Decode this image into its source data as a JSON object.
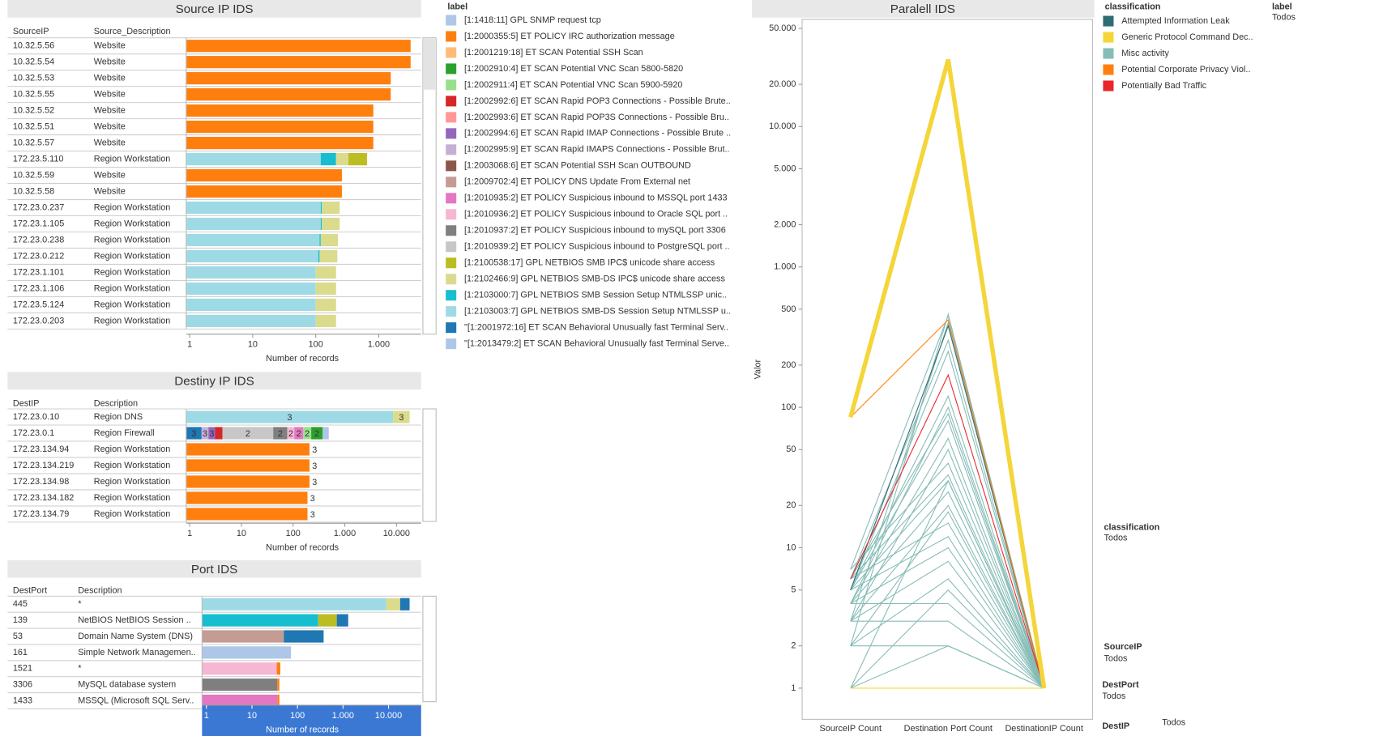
{
  "source_ip": {
    "title": "Source IP IDS",
    "columns": [
      "SourceIP",
      "Source_Description"
    ],
    "axis": {
      "label": "Number of records",
      "lim": [
        0.88,
        4700
      ],
      "ticks": [
        1,
        10,
        100,
        {
          "value": 1000,
          "label": "1.000"
        }
      ]
    },
    "rows": [
      {
        "key": "10.32.5.56",
        "description": "Website",
        "segments": [
          {
            "color": "#ff7f0e",
            "value": 3200
          }
        ]
      },
      {
        "key": "10.32.5.54",
        "description": "Website",
        "segments": [
          {
            "color": "#ff7f0e",
            "value": 3200
          }
        ]
      },
      {
        "key": "10.32.5.53",
        "description": "Website",
        "segments": [
          {
            "color": "#ff7f0e",
            "value": 1550
          }
        ]
      },
      {
        "key": "10.32.5.55",
        "description": "Website",
        "segments": [
          {
            "color": "#ff7f0e",
            "value": 1550
          }
        ]
      },
      {
        "key": "10.32.5.52",
        "description": "Website",
        "segments": [
          {
            "color": "#ff7f0e",
            "value": 820
          }
        ]
      },
      {
        "key": "10.32.5.51",
        "description": "Website",
        "segments": [
          {
            "color": "#ff7f0e",
            "value": 820
          }
        ]
      },
      {
        "key": "10.32.5.57",
        "description": "Website",
        "segments": [
          {
            "color": "#ff7f0e",
            "value": 820
          }
        ]
      },
      {
        "key": "172.23.5.110",
        "description": "Region Workstation",
        "segments": [
          {
            "color": "#9edae5",
            "value": 120
          },
          {
            "color": "#17becf",
            "value": 90
          },
          {
            "color": "#dbdb8d",
            "value": 120
          },
          {
            "color": "#bcbd22",
            "value": 320
          }
        ]
      },
      {
        "key": "10.32.5.59",
        "description": "Website",
        "segments": [
          {
            "color": "#ff7f0e",
            "value": 260
          }
        ]
      },
      {
        "key": "10.32.5.58",
        "description": "Website",
        "segments": [
          {
            "color": "#ff7f0e",
            "value": 260
          }
        ]
      },
      {
        "key": "172.23.0.237",
        "description": "Region Workstation",
        "segments": [
          {
            "color": "#9edae5",
            "value": 120
          },
          {
            "color": "#17becf",
            "value": 5
          },
          {
            "color": "#dbdb8d",
            "value": 115
          }
        ]
      },
      {
        "key": "172.23.1.105",
        "description": "Region Workstation",
        "segments": [
          {
            "color": "#9edae5",
            "value": 120
          },
          {
            "color": "#17becf",
            "value": 5
          },
          {
            "color": "#dbdb8d",
            "value": 115
          }
        ]
      },
      {
        "key": "172.23.0.238",
        "description": "Region Workstation",
        "segments": [
          {
            "color": "#9edae5",
            "value": 115
          },
          {
            "color": "#17becf",
            "value": 5
          },
          {
            "color": "#dbdb8d",
            "value": 105
          }
        ]
      },
      {
        "key": "172.23.0.212",
        "description": "Region Workstation",
        "segments": [
          {
            "color": "#9edae5",
            "value": 110
          },
          {
            "color": "#17becf",
            "value": 5
          },
          {
            "color": "#dbdb8d",
            "value": 105
          }
        ]
      },
      {
        "key": "172.23.1.101",
        "description": "Region Workstation",
        "segments": [
          {
            "color": "#9edae5",
            "value": 100
          },
          {
            "color": "#dbdb8d",
            "value": 110
          }
        ]
      },
      {
        "key": "172.23.1.106",
        "description": "Region Workstation",
        "segments": [
          {
            "color": "#9edae5",
            "value": 100
          },
          {
            "color": "#dbdb8d",
            "value": 110
          }
        ]
      },
      {
        "key": "172.23.5.124",
        "description": "Region Workstation",
        "segments": [
          {
            "color": "#9edae5",
            "value": 100
          },
          {
            "color": "#dbdb8d",
            "value": 110
          }
        ]
      },
      {
        "key": "172.23.0.203",
        "description": "Region Workstation",
        "segments": [
          {
            "color": "#9edae5",
            "value": 100
          },
          {
            "color": "#dbdb8d",
            "value": 110
          }
        ]
      }
    ]
  },
  "destiny_ip": {
    "title": "Destiny IP IDS",
    "columns": [
      "DestIP",
      "Description"
    ],
    "axis": {
      "label": "Number of records",
      "lim": [
        0.855,
        30000
      ],
      "ticks": [
        1,
        10,
        100,
        {
          "value": 1000,
          "label": "1.000"
        },
        {
          "value": 10000,
          "label": "10.000"
        }
      ]
    },
    "rows": [
      {
        "key": "172.23.0.10",
        "description": "Region DNS",
        "segments": [
          {
            "color": "#9edae5",
            "value": 8600,
            "label": "3"
          },
          {
            "color": "#dbdb8d",
            "value": 9400,
            "label": "3"
          }
        ]
      },
      {
        "key": "172.23.0.1",
        "description": "Region Firewall",
        "segments": [
          {
            "color": "#1f77b4",
            "value": 1.7,
            "label": "3"
          },
          {
            "color": "#c5b0d5",
            "value": 0.6,
            "label": "3"
          },
          {
            "color": "#9467bd",
            "value": 0.8,
            "label": "3"
          },
          {
            "color": "#d62728",
            "value": 1.2
          },
          {
            "color": "#c7c7c7",
            "value": 37,
            "label": "2"
          },
          {
            "color": "#7f7f7f",
            "value": 36,
            "label": "2"
          },
          {
            "color": "#f7b6d2",
            "value": 28,
            "label": "2"
          },
          {
            "color": "#e377c2",
            "value": 52,
            "label": "2"
          },
          {
            "color": "#98df8a",
            "value": 67,
            "label": "2"
          },
          {
            "color": "#2ca02c",
            "value": 150,
            "label": "2"
          },
          {
            "color": "#aec7e8",
            "value": 115
          }
        ]
      },
      {
        "key": "172.23.134.94",
        "description": "Region Workstation",
        "segments": [
          {
            "color": "#ff7f0e",
            "value": 208,
            "label": "3"
          }
        ]
      },
      {
        "key": "172.23.134.219",
        "description": "Region Workstation",
        "segments": [
          {
            "color": "#ff7f0e",
            "value": 208,
            "label": "3"
          }
        ]
      },
      {
        "key": "172.23.134.98",
        "description": "Region Workstation",
        "segments": [
          {
            "color": "#ff7f0e",
            "value": 208,
            "label": "3"
          }
        ]
      },
      {
        "key": "172.23.134.182",
        "description": "Region Workstation",
        "segments": [
          {
            "color": "#ff7f0e",
            "value": 190,
            "label": "3"
          }
        ]
      },
      {
        "key": "172.23.134.79",
        "description": "Region Workstation",
        "segments": [
          {
            "color": "#ff7f0e",
            "value": 190,
            "label": "3"
          }
        ]
      }
    ]
  },
  "port": {
    "title": "Port IDS",
    "columns": [
      "DestPort",
      "Description"
    ],
    "axis": {
      "label": "Number of records",
      "lim": [
        0.8,
        52000
      ],
      "ticks": [
        1,
        10,
        100,
        {
          "value": 1000,
          "label": "1.000"
        },
        {
          "value": 10000,
          "label": "10.000"
        }
      ]
    },
    "rows": [
      {
        "key": "445",
        "description": "*",
        "segments": [
          {
            "color": "#9edae5",
            "value": 8900
          },
          {
            "color": "#dbdb8d",
            "value": 9100
          },
          {
            "color": "#1f77b4",
            "value": 11000
          }
        ]
      },
      {
        "key": "139",
        "description": "NetBIOS NetBIOS Session ..",
        "segments": [
          {
            "color": "#17becf",
            "value": 285
          },
          {
            "color": "#bcbd22",
            "value": 445
          },
          {
            "color": "#1f77b4",
            "value": 570
          }
        ]
      },
      {
        "key": "53",
        "description": "Domain Name System (DNS)",
        "segments": [
          {
            "color": "#c49c94",
            "value": 50
          },
          {
            "color": "#1f77b4",
            "value": 325
          }
        ]
      },
      {
        "key": "161",
        "description": "Simple Network Managemen..",
        "segments": [
          {
            "color": "#aec7e8",
            "value": 72
          }
        ]
      },
      {
        "key": "1521",
        "description": "*",
        "segments": [
          {
            "color": "#f7b6d2",
            "value": 35
          },
          {
            "color": "#ff7f0e",
            "value": 7
          }
        ]
      },
      {
        "key": "3306",
        "description": "MySQL database system",
        "segments": [
          {
            "color": "#7f7f7f",
            "value": 36
          },
          {
            "color": "#ff7f0e",
            "value": 4
          }
        ]
      },
      {
        "key": "1433",
        "description": "MSSQL (Microsoft SQL Serv..",
        "segments": [
          {
            "color": "#e377c2",
            "value": 36
          },
          {
            "color": "#ff7f0e",
            "value": 4
          }
        ]
      }
    ]
  },
  "label_legend": {
    "title": "label",
    "items": [
      {
        "text": "[1:1418:11] GPL SNMP request tcp",
        "color": "#aec7e8"
      },
      {
        "text": "[1:2000355:5] ET POLICY IRC authorization message",
        "color": "#ff7f0e"
      },
      {
        "text": "[1:2001219:18] ET SCAN Potential SSH Scan",
        "color": "#ffbb78"
      },
      {
        "text": "[1:2002910:4] ET SCAN Potential VNC Scan 5800-5820",
        "color": "#2ca02c"
      },
      {
        "text": "[1:2002911:4] ET SCAN Potential VNC Scan 5900-5920",
        "color": "#98df8a"
      },
      {
        "text": "[1:2002992:6] ET SCAN Rapid POP3 Connections - Possible Brute..",
        "color": "#d62728"
      },
      {
        "text": "[1:2002993:6] ET SCAN Rapid POP3S Connections - Possible Bru..",
        "color": "#ff9896"
      },
      {
        "text": "[1:2002994:6] ET SCAN Rapid IMAP Connections - Possible Brute ..",
        "color": "#9467bd"
      },
      {
        "text": "[1:2002995:9] ET SCAN Rapid IMAPS Connections - Possible Brut..",
        "color": "#c5b0d5"
      },
      {
        "text": "[1:2003068:6] ET SCAN Potential SSH Scan OUTBOUND",
        "color": "#8c564b"
      },
      {
        "text": "[1:2009702:4] ET POLICY DNS Update From External net",
        "color": "#c49c94"
      },
      {
        "text": "[1:2010935:2] ET POLICY Suspicious inbound to MSSQL port 1433",
        "color": "#e377c2"
      },
      {
        "text": "[1:2010936:2] ET POLICY Suspicious inbound to Oracle SQL port ..",
        "color": "#f7b6d2"
      },
      {
        "text": "[1:2010937:2] ET POLICY Suspicious inbound to mySQL port 3306",
        "color": "#7f7f7f"
      },
      {
        "text": "[1:2010939:2] ET POLICY Suspicious inbound to PostgreSQL port ..",
        "color": "#c7c7c7"
      },
      {
        "text": "[1:2100538:17] GPL NETBIOS SMB IPC$ unicode share access",
        "color": "#bcbd22"
      },
      {
        "text": "[1:2102466:9] GPL NETBIOS SMB-DS IPC$ unicode share access",
        "color": "#dbdb8d"
      },
      {
        "text": "[1:2103000:7] GPL NETBIOS SMB Session Setup NTMLSSP unic..",
        "color": "#17becf"
      },
      {
        "text": "[1:2103003:7] GPL NETBIOS SMB-DS Session Setup NTMLSSP u..",
        "color": "#9edae5"
      },
      {
        "text": "\"[1:2001972:16] ET SCAN Behavioral Unusually fast Terminal Serv..",
        "color": "#1f77b4"
      },
      {
        "text": "\"[1:2013479:2] ET SCAN Behavioral Unusually fast Terminal Serve..",
        "color": "#aec7e8"
      }
    ]
  },
  "classification_legend": {
    "title": "classification",
    "items": [
      {
        "text": "Attempted Information Leak",
        "color": "#2f6b75"
      },
      {
        "text": "Generic Protocol Command Dec..",
        "color": "#f4d63a"
      },
      {
        "text": "Misc activity",
        "color": "#86bcb6"
      },
      {
        "text": "Potential Corporate Privacy Viol..",
        "color": "#ff7f0e"
      },
      {
        "text": "Potentially Bad Traffic",
        "color": "#e8262b"
      }
    ]
  },
  "parallel": {
    "title": "Paralell IDS",
    "y_label": "Valor",
    "axes": [
      "SourceIP Count",
      "Destination Port Count",
      "DestinationIP Count"
    ],
    "ylim": [
      0.6,
      58000
    ],
    "yticks": [
      1,
      2,
      5,
      10,
      20,
      50,
      100,
      200,
      500,
      {
        "value": 1000,
        "label": "1.000"
      },
      {
        "value": 2000,
        "label": "2.000"
      },
      {
        "value": 5000,
        "label": "5.000"
      },
      {
        "value": 10000,
        "label": "10.000"
      },
      {
        "value": 20000,
        "label": "20.000"
      },
      {
        "value": 50000,
        "label": "50.000"
      }
    ],
    "lines": [
      {
        "color": "#86bcb6",
        "width": 1,
        "values": [
          7,
          450,
          1
        ]
      },
      {
        "color": "#86bcb6",
        "width": 1,
        "values": [
          2,
          460,
          1
        ]
      },
      {
        "color": "#86bcb6",
        "width": 1,
        "values": [
          3,
          400,
          1
        ]
      },
      {
        "color": "#86bcb6",
        "width": 1,
        "values": [
          6,
          300,
          1
        ]
      },
      {
        "color": "#86bcb6",
        "width": 1,
        "values": [
          5,
          250,
          1
        ]
      },
      {
        "color": "#86bcb6",
        "width": 1,
        "values": [
          5,
          120,
          1
        ]
      },
      {
        "color": "#86bcb6",
        "width": 1,
        "values": [
          4,
          100,
          1
        ]
      },
      {
        "color": "#86bcb6",
        "width": 1,
        "values": [
          6,
          90,
          1
        ]
      },
      {
        "color": "#86bcb6",
        "width": 1,
        "values": [
          5,
          80,
          1
        ]
      },
      {
        "color": "#86bcb6",
        "width": 1,
        "values": [
          4,
          60,
          1
        ]
      },
      {
        "color": "#86bcb6",
        "width": 1,
        "values": [
          3,
          50,
          1
        ]
      },
      {
        "color": "#86bcb6",
        "width": 1,
        "values": [
          7,
          40,
          1
        ]
      },
      {
        "color": "#86bcb6",
        "width": 1,
        "values": [
          6,
          33,
          1
        ]
      },
      {
        "color": "#86bcb6",
        "width": 1,
        "values": [
          5,
          30,
          1
        ]
      },
      {
        "color": "#86bcb6",
        "width": 1,
        "values": [
          1,
          30,
          1
        ]
      },
      {
        "color": "#86bcb6",
        "width": 1,
        "values": [
          4,
          25,
          1
        ]
      },
      {
        "color": "#86bcb6",
        "width": 1,
        "values": [
          3,
          20,
          1
        ]
      },
      {
        "color": "#86bcb6",
        "width": 1,
        "values": [
          2,
          18,
          1
        ]
      },
      {
        "color": "#86bcb6",
        "width": 1,
        "values": [
          6,
          15,
          1
        ]
      },
      {
        "color": "#86bcb6",
        "width": 1,
        "values": [
          5,
          12,
          1
        ]
      },
      {
        "color": "#86bcb6",
        "width": 1,
        "values": [
          4,
          10,
          1
        ]
      },
      {
        "color": "#86bcb6",
        "width": 1,
        "values": [
          3,
          8,
          1
        ]
      },
      {
        "color": "#86bcb6",
        "width": 1,
        "values": [
          2,
          6,
          1
        ]
      },
      {
        "color": "#86bcb6",
        "width": 1,
        "values": [
          1,
          5,
          1
        ]
      },
      {
        "color": "#86bcb6",
        "width": 1,
        "values": [
          4,
          4,
          1
        ]
      },
      {
        "color": "#86bcb6",
        "width": 1,
        "values": [
          3,
          3,
          1
        ]
      },
      {
        "color": "#86bcb6",
        "width": 1,
        "values": [
          2,
          2,
          1
        ]
      },
      {
        "color": "#86bcb6",
        "width": 1,
        "values": [
          1,
          2,
          1
        ]
      },
      {
        "color": "#f4d63a",
        "width": 1,
        "values": [
          1,
          1,
          1
        ]
      },
      {
        "color": "#2f6b75",
        "width": 1,
        "values": [
          5,
          380,
          1
        ]
      },
      {
        "color": "#e8262b",
        "width": 1,
        "values": [
          6,
          170,
          1
        ]
      },
      {
        "color": "#ff7f0e",
        "width": 1,
        "values": [
          85,
          420,
          1
        ]
      },
      {
        "color": "#f4d63a",
        "width": 5,
        "values": [
          85,
          30000,
          1
        ]
      }
    ]
  },
  "filters": [
    {
      "title": "label",
      "value": "Todos"
    },
    {
      "title": "classification",
      "value": "Todos"
    },
    {
      "title": "SourceIP",
      "value": "Todos"
    },
    {
      "title": "DestPort",
      "value": "Todos"
    },
    {
      "title": "DestIP",
      "value": "Todos"
    }
  ]
}
